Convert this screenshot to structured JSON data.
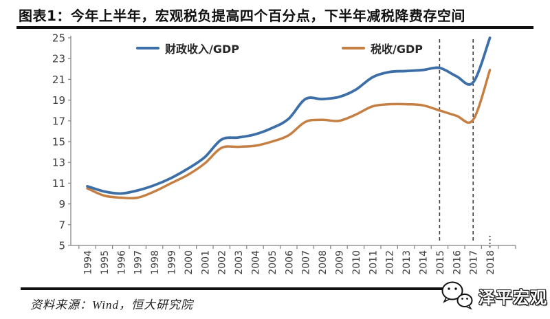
{
  "header": {
    "title": "图表1：今年上半年，宏观税负提高四个百分点，下半年减税降费存空间"
  },
  "legend": [
    {
      "label": "财政收入/GDP",
      "color": "#3C6EA8"
    },
    {
      "label": "税收/GDP",
      "color": "#C67F43"
    }
  ],
  "chart_data": {
    "type": "line",
    "title": "图表1：今年上半年，宏观税负提高四个百分点，下半年减税降费存空间",
    "x": [
      1994,
      1995,
      1996,
      1997,
      1998,
      1999,
      2000,
      2001,
      2002,
      2003,
      2004,
      2005,
      2006,
      2007,
      2008,
      2009,
      2010,
      2011,
      2012,
      2013,
      2014,
      2015,
      2016,
      2017,
      2018
    ],
    "series": [
      {
        "name": "财政收入/GDP",
        "color": "#3C6EA8",
        "values": [
          10.7,
          10.2,
          10.0,
          10.3,
          10.8,
          11.5,
          12.4,
          13.5,
          15.2,
          15.4,
          15.7,
          16.3,
          17.2,
          19.1,
          19.1,
          19.3,
          20.0,
          21.2,
          21.7,
          21.8,
          21.9,
          22.1,
          21.3,
          20.7,
          25.0
        ]
      },
      {
        "name": "税收/GDP",
        "color": "#C67F43",
        "values": [
          10.5,
          9.8,
          9.6,
          9.6,
          10.2,
          11.0,
          11.8,
          12.9,
          14.4,
          14.5,
          14.6,
          15.0,
          15.6,
          16.9,
          17.1,
          17.0,
          17.6,
          18.4,
          18.6,
          18.6,
          18.5,
          18.0,
          17.5,
          17.1,
          21.9
        ]
      }
    ],
    "xlabel": "",
    "ylabel": "",
    "ylim": [
      5,
      25
    ],
    "yticks": [
      5,
      7,
      9,
      11,
      13,
      15,
      17,
      19,
      21,
      23,
      25
    ],
    "grid": false,
    "legend_position": "top",
    "annotations": {
      "dashed_vlines": [
        2015,
        2017
      ],
      "dotted_stub_year": 2018
    }
  },
  "footer": {
    "source": "资料来源：Wind，恒大研究院",
    "logo_text": "泽平宏观",
    "wechat_icon": "wechat-icon"
  }
}
